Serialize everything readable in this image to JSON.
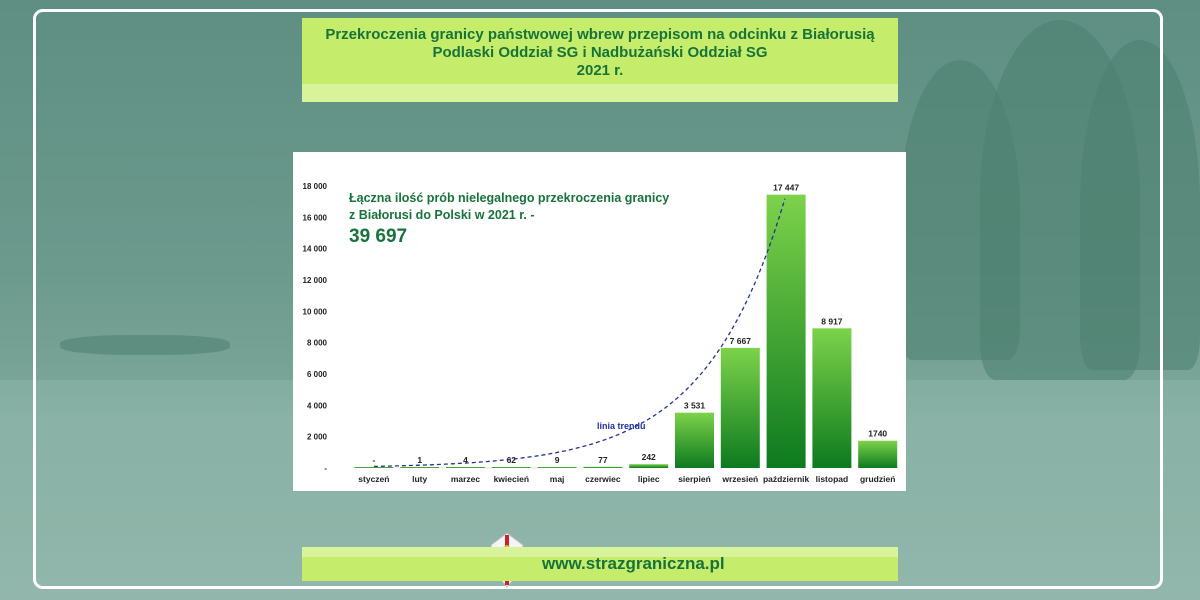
{
  "header": {
    "title_line1": "Przekroczenia granicy państwowej wbrew przepisom na odcinku z Białorusią",
    "title_line2": "Podlaski Oddział SG i Nadbużański Oddział SG",
    "title_line3": "2021 r."
  },
  "chart_data": {
    "type": "bar",
    "categories": [
      "styczeń",
      "luty",
      "marzec",
      "kwiecień",
      "maj",
      "czerwiec",
      "lipiec",
      "sierpień",
      "wrzesień",
      "październik",
      "listopad",
      "grudzień"
    ],
    "values": [
      0,
      1,
      4,
      62,
      9,
      77,
      242,
      3531,
      7667,
      17447,
      8917,
      1740
    ],
    "data_labels": [
      "-",
      "1",
      "4",
      "62",
      "9",
      "77",
      "242",
      "3 531",
      "7 667",
      "17 447",
      "8 917",
      "1740"
    ],
    "ylim": [
      0,
      18000
    ],
    "yticks": [
      0,
      2000,
      4000,
      6000,
      8000,
      10000,
      12000,
      14000,
      16000,
      18000
    ],
    "ytick_labels": [
      "-",
      "2 000",
      "4 000",
      "6 000",
      "8 000",
      "10 000",
      "12 000",
      "14 000",
      "16 000",
      "18 000"
    ],
    "annotation_line1": "Łączna ilość prób nielegalnego przekroczenia granicy",
    "annotation_line2": "z Białorusi do Polski w 2021 r. -",
    "annotation_total": "39 697",
    "trendline_label": "linia trendu",
    "bar_color_top": "#7dd24a",
    "bar_color_bottom": "#0d7a1f",
    "trend_color": "#24309a",
    "grid": false
  },
  "footer": {
    "url": "www.strazgraniczna.pl"
  },
  "colors": {
    "banner": "#c6ec6b",
    "banner_text": "#17733a"
  }
}
